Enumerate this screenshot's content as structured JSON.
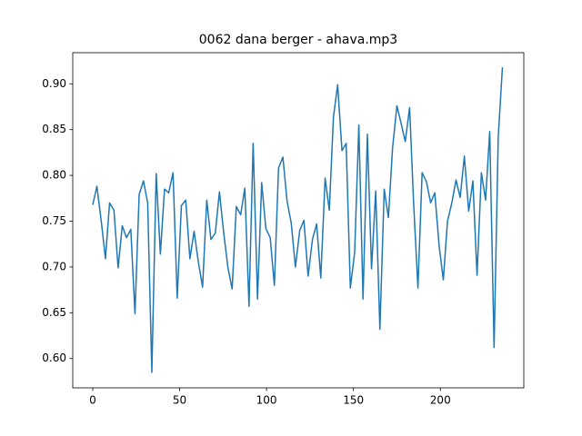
{
  "chart_data": {
    "type": "line",
    "title": "0062 dana berger - ahava.mp3",
    "x": [
      0,
      2.4,
      4.9,
      7.3,
      9.7,
      12.2,
      14.6,
      17.0,
      19.4,
      21.9,
      24.3,
      26.7,
      29.2,
      31.6,
      34.0,
      36.5,
      38.9,
      41.3,
      43.7,
      46.2,
      48.6,
      51.0,
      53.5,
      55.9,
      58.3,
      60.8,
      63.2,
      65.6,
      68.0,
      70.5,
      72.9,
      75.3,
      77.8,
      80.2,
      82.6,
      85.1,
      87.5,
      89.9,
      92.3,
      94.8,
      97.2,
      99.6,
      102.1,
      104.5,
      106.9,
      109.4,
      111.8,
      114.2,
      116.6,
      119.1,
      121.5,
      123.9,
      126.4,
      128.8,
      131.2,
      133.7,
      136.1,
      138.5,
      140.9,
      143.4,
      145.8,
      148.2,
      150.7,
      153.1,
      155.5,
      158.0,
      160.4,
      162.8,
      165.2,
      167.7,
      170.1,
      172.5,
      175.0,
      177.4,
      179.8,
      182.3,
      184.7,
      187.1,
      189.5,
      192.0,
      194.4,
      196.8,
      199.3,
      201.7,
      204.1,
      206.6,
      209.0,
      211.4,
      213.8,
      216.3,
      218.7,
      221.1,
      223.6,
      226.0,
      228.4,
      230.9,
      233.3,
      235.7
    ],
    "series": [
      {
        "color": "#1f77b4",
        "values": [
          0.768,
          0.788,
          0.75,
          0.709,
          0.77,
          0.762,
          0.699,
          0.745,
          0.732,
          0.741,
          0.649,
          0.779,
          0.794,
          0.77,
          0.585,
          0.802,
          0.714,
          0.785,
          0.781,
          0.803,
          0.666,
          0.767,
          0.773,
          0.709,
          0.739,
          0.705,
          0.678,
          0.773,
          0.73,
          0.737,
          0.782,
          0.738,
          0.699,
          0.676,
          0.766,
          0.757,
          0.786,
          0.657,
          0.835,
          0.665,
          0.792,
          0.742,
          0.732,
          0.68,
          0.808,
          0.82,
          0.772,
          0.748,
          0.7,
          0.74,
          0.751,
          0.69,
          0.73,
          0.747,
          0.688,
          0.797,
          0.762,
          0.864,
          0.899,
          0.827,
          0.835,
          0.677,
          0.716,
          0.855,
          0.665,
          0.845,
          0.698,
          0.783,
          0.632,
          0.785,
          0.754,
          0.83,
          0.876,
          0.857,
          0.837,
          0.874,
          0.766,
          0.677,
          0.803,
          0.793,
          0.77,
          0.781,
          0.723,
          0.686,
          0.75,
          0.77,
          0.795,
          0.776,
          0.821,
          0.761,
          0.794,
          0.691,
          0.803,
          0.773,
          0.848,
          0.612,
          0.842,
          0.918
        ]
      }
    ],
    "xlim": [
      -11.5,
      248
    ],
    "ylim": [
      0.568,
      0.934
    ],
    "xticks": [
      0,
      50,
      100,
      150,
      200
    ],
    "yticks": [
      {
        "value": 0.6,
        "label": "0.60"
      },
      {
        "value": 0.65,
        "label": "0.65"
      },
      {
        "value": 0.7,
        "label": "0.70"
      },
      {
        "value": 0.75,
        "label": "0.75"
      },
      {
        "value": 0.8,
        "label": "0.80"
      },
      {
        "value": 0.85,
        "label": "0.85"
      },
      {
        "value": 0.9,
        "label": "0.90"
      }
    ]
  }
}
